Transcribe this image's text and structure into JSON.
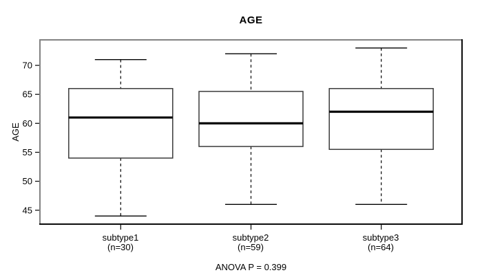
{
  "figure": {
    "background": "#ffffff"
  },
  "chart_data": {
    "type": "boxplot",
    "title": "AGE",
    "ylabel": "AGE",
    "xlabel": "",
    "footnote": "ANOVA P = 0.399",
    "yticks": [
      45,
      50,
      55,
      60,
      65,
      70
    ],
    "ylim": [
      42.6,
      74.4
    ],
    "grid": false,
    "groups": [
      {
        "label": "subtype1",
        "n_label": "(n=30)",
        "whisker_low": 44,
        "q1": 54,
        "median": 61,
        "q3": 66,
        "whisker_high": 71
      },
      {
        "label": "subtype2",
        "n_label": "(n=59)",
        "whisker_low": 46,
        "q1": 56,
        "median": 60,
        "q3": 65.5,
        "whisker_high": 72
      },
      {
        "label": "subtype3",
        "n_label": "(n=64)",
        "whisker_low": 46,
        "q1": 55.5,
        "median": 62,
        "q3": 66,
        "whisker_high": 73
      }
    ],
    "colors": {
      "line": "#000000",
      "box_stroke": "#3a3a3a",
      "frame_light": "#828282",
      "frame_dark": "#0a0a0a",
      "text": "#000000",
      "box_fill": "#ffffff"
    }
  }
}
